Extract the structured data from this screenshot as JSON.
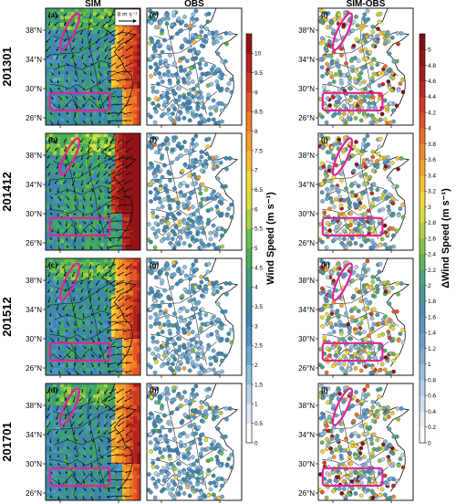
{
  "chart_data": {
    "type": "heatmap",
    "column_titles": [
      "SIM",
      "OBS",
      "SIM-OBS"
    ],
    "row_labels": [
      "201301",
      "201412",
      "201512",
      "201701"
    ],
    "panel_letters": [
      [
        "(a)",
        "(e)",
        "(i)"
      ],
      [
        "(b)",
        "(f)",
        "(j)"
      ],
      [
        "(c)",
        "(g)",
        "(k)"
      ],
      [
        "(d)",
        "(h)",
        "(l)"
      ]
    ],
    "lat_ticks": [
      "26°N",
      "30°N",
      "34°N",
      "38°N"
    ],
    "lat_values": [
      26,
      30,
      34,
      38
    ],
    "lon_ticks": [
      "112°E",
      "120°E"
    ],
    "lon_values": [
      112,
      120
    ],
    "lon_range": [
      110,
      123
    ],
    "lat_range": [
      25,
      41
    ],
    "vector_reference": "8 m s⁻¹",
    "wind_speed_colorbar": {
      "label": "Wind Speed (m s⁻¹)",
      "range": [
        0,
        10.5
      ],
      "ticks": [
        "0",
        "0.5",
        "1",
        "1.5",
        "2",
        "2.5",
        "3",
        "3.5",
        "4",
        "4.5",
        "5",
        "5.5",
        "6",
        "6.5",
        "7",
        "7.5",
        "8",
        "8.5",
        "9",
        "9.5",
        "10"
      ],
      "colors": [
        "#ffffff",
        "#dbe9f6",
        "#b7d4ea",
        "#8ebfdf",
        "#6aa9d1",
        "#4d94c2",
        "#3f84b3",
        "#3a8f9a",
        "#3e9e78",
        "#47ad58",
        "#6cc04a",
        "#a6d045",
        "#d7df3e",
        "#f2d73a",
        "#f7bb33",
        "#f59b2c",
        "#ef7a28",
        "#e25724",
        "#cc3a22",
        "#b4221f",
        "#931317"
      ]
    },
    "difference_colorbar": {
      "label": "ΔWind Speed (m s⁻¹)",
      "range": [
        0,
        5.2
      ],
      "ticks": [
        "0",
        "0.2",
        "0.4",
        "0.6",
        "0.8",
        "1",
        "1.2",
        "1.4",
        "1.6",
        "1.8",
        "2",
        "2.2",
        "2.4",
        "2.6",
        "2.8",
        "3",
        "3.2",
        "3.4",
        "3.6",
        "3.8",
        "4",
        "4.2",
        "4.4",
        "4.6",
        "4.8",
        "5"
      ],
      "colors": [
        "#ffffff",
        "#e6eef8",
        "#cfdff0",
        "#b5cfe8",
        "#9cbfe0",
        "#82aed6",
        "#6d9fcd",
        "#5c93c3",
        "#4f8db7",
        "#4a9a99",
        "#4ea67c",
        "#63b45e",
        "#88c24e",
        "#b2cf48",
        "#d6db42",
        "#f0d83b",
        "#f5c033",
        "#f5a52e",
        "#f08a2a",
        "#e86e27",
        "#dd5324",
        "#cf3c22",
        "#bd2a20",
        "#a81d1e",
        "#92141b",
        "#7e0e17"
      ]
    }
  }
}
